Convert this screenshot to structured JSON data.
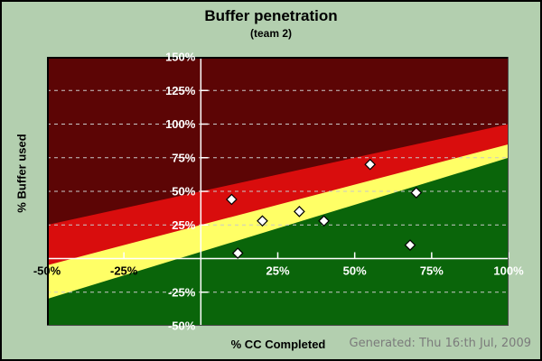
{
  "header": {
    "title": "Buffer penetration",
    "subtitle": "(team 2)"
  },
  "footer": {
    "generated_text": "Generated: Thu 16:th Jul, 2009"
  },
  "chart_data": {
    "type": "scatter",
    "title": "Buffer penetration",
    "subtitle": "(team 2)",
    "xlabel": "% CC Completed",
    "ylabel": "% Buffer used",
    "xlim": [
      -50,
      100
    ],
    "ylim": [
      -50,
      150
    ],
    "grid": "dashed horizontal at every 25%",
    "gridline_values": [
      125,
      100,
      75,
      50,
      25,
      -25
    ],
    "gridline_color": "#C9C9C9",
    "axis_line_color": "#FFFFFF",
    "plot_border_dark": "#000000",
    "plot_border_light": "#4a4a4a",
    "x_ticks": [
      {
        "value": -50,
        "label": "-50%",
        "color": "#000000"
      },
      {
        "value": -25,
        "label": "-25%",
        "color": "#000000"
      },
      {
        "value": 25,
        "label": "25%",
        "color": "#FFFFFF"
      },
      {
        "value": 50,
        "label": "50%",
        "color": "#FFFFFF"
      },
      {
        "value": 75,
        "label": "75%",
        "color": "#FFFFFF"
      },
      {
        "value": 100,
        "label": "100%",
        "color": "#FFFFFF"
      }
    ],
    "y_ticks": [
      {
        "value": 150,
        "label": "150%",
        "color": "#FFFFFF"
      },
      {
        "value": 125,
        "label": "125%",
        "color": "#FFFFFF"
      },
      {
        "value": 100,
        "label": "100%",
        "color": "#FFFFFF"
      },
      {
        "value": 75,
        "label": "75%",
        "color": "#FFFFFF"
      },
      {
        "value": 50,
        "label": "50%",
        "color": "#FFFFFF"
      },
      {
        "value": 25,
        "label": "25%",
        "color": "#FFFFFF"
      },
      {
        "value": -25,
        "label": "-25%",
        "color": "#FFFFFF"
      },
      {
        "value": -50,
        "label": "-50%",
        "color": "#FFFFFF"
      }
    ],
    "zones": [
      {
        "name": "dark-red-zone",
        "color": "#5C0505",
        "top_boundary": null
      },
      {
        "name": "red-zone",
        "color": "#D90D0D",
        "top_boundary": {
          "start": 25,
          "end": 100
        }
      },
      {
        "name": "yellow-zone",
        "color": "#FFFF66",
        "top_boundary": {
          "start": -5,
          "end": 85
        }
      },
      {
        "name": "green-zone",
        "color": "#0A650A",
        "top_boundary": {
          "start": -30,
          "end": 75
        }
      }
    ],
    "series": [
      {
        "name": "buffer-penetration-points",
        "marker": "white diamond, black outline",
        "points": [
          {
            "x": 10,
            "y": 44
          },
          {
            "x": 12,
            "y": 4
          },
          {
            "x": 20,
            "y": 28
          },
          {
            "x": 32,
            "y": 35
          },
          {
            "x": 40,
            "y": 28
          },
          {
            "x": 55,
            "y": 70
          },
          {
            "x": 68,
            "y": 10
          },
          {
            "x": 70,
            "y": 49
          }
        ]
      }
    ]
  },
  "colors": {
    "page_background": "#B3CFAF",
    "outer_border": "#000000"
  }
}
